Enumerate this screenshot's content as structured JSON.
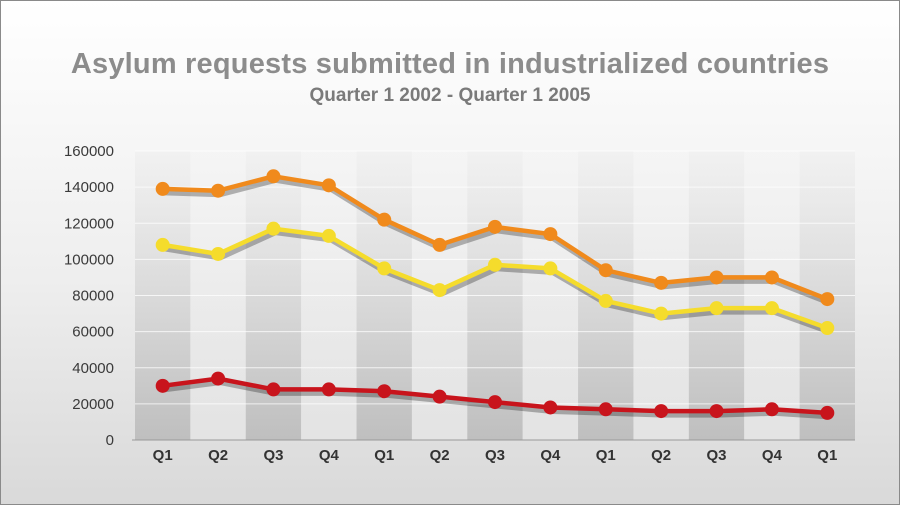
{
  "chart_data": {
    "type": "line",
    "title": "Asylum requests submitted in industrialized countries",
    "subtitle": "Quarter 1 2002 - Quarter 1 2005",
    "categories": [
      "Q1",
      "Q2",
      "Q3",
      "Q4",
      "Q1",
      "Q2",
      "Q3",
      "Q4",
      "Q1",
      "Q2",
      "Q3",
      "Q4",
      "Q1"
    ],
    "ylim": [
      0,
      160000
    ],
    "yticks": [
      "0",
      "20000",
      "40000",
      "60000",
      "80000",
      "100000",
      "120000",
      "140000",
      "160000"
    ],
    "grid": true,
    "legend": "none",
    "series": [
      {
        "color": "#f08a1c",
        "values": [
          139000,
          138000,
          146000,
          141000,
          122000,
          108000,
          118000,
          114000,
          94000,
          87000,
          90000,
          90000,
          78000
        ]
      },
      {
        "color": "#f5dc2c",
        "values": [
          108000,
          103000,
          117000,
          113000,
          95000,
          83000,
          97000,
          95000,
          77000,
          70000,
          73000,
          73000,
          62000
        ]
      },
      {
        "color": "#c8141c",
        "values": [
          30000,
          34000,
          28000,
          28000,
          27000,
          24000,
          21000,
          18000,
          17000,
          16000,
          16000,
          17000,
          15000
        ]
      }
    ]
  }
}
